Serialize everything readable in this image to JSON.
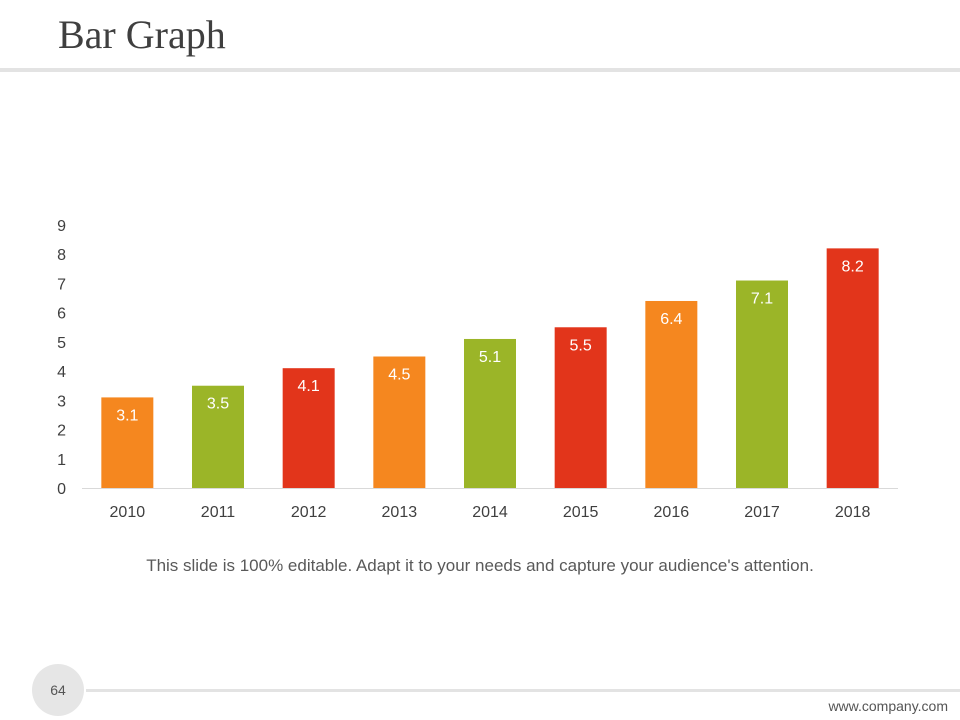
{
  "slide": {
    "title": "Bar Graph",
    "caption": "This slide is 100% editable. Adapt it to your needs and capture your audience's attention.",
    "page_number": "64",
    "footer_url": "www.company.com"
  },
  "colors": {
    "orange": "#f5871f",
    "green": "#9bb528",
    "red": "#e2351b",
    "axis": "#d9d9d9",
    "tick_text": "#3f3f3f",
    "label_text": "#ffffff"
  },
  "chart_data": {
    "type": "bar",
    "title": "",
    "xlabel": "",
    "ylabel": "",
    "categories": [
      "2010",
      "2011",
      "2012",
      "2013",
      "2014",
      "2015",
      "2016",
      "2017",
      "2018"
    ],
    "values": [
      3.1,
      3.5,
      4.1,
      4.5,
      5.1,
      5.5,
      6.4,
      7.1,
      8.2
    ],
    "value_labels": [
      "3.1",
      "3.5",
      "4.1",
      "4.5",
      "5.1",
      "5.5",
      "6.4",
      "7.1",
      "8.2"
    ],
    "bar_colors": [
      "#f5871f",
      "#9bb528",
      "#e2351b",
      "#f5871f",
      "#9bb528",
      "#e2351b",
      "#f5871f",
      "#9bb528",
      "#e2351b"
    ],
    "ylim": [
      0,
      9
    ],
    "yticks": [
      "0",
      "1",
      "2",
      "3",
      "4",
      "5",
      "6",
      "7",
      "8",
      "9"
    ],
    "grid": false,
    "legend": "none"
  }
}
